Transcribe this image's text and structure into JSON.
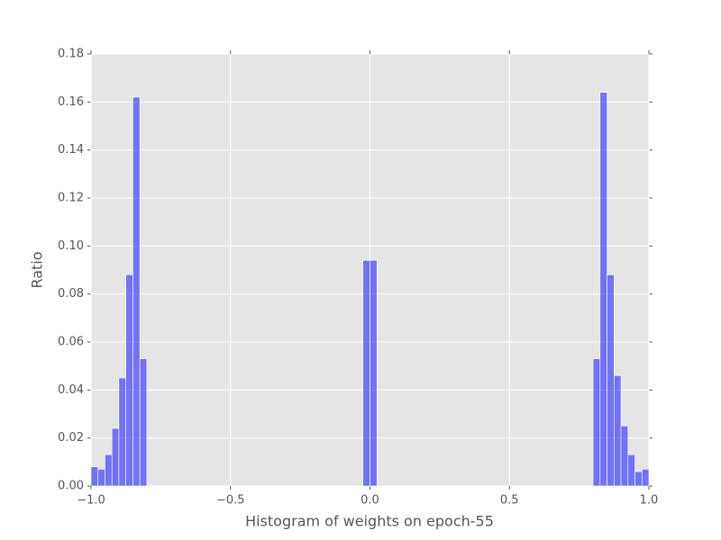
{
  "chart_data": {
    "type": "histogram",
    "xlabel": "Histogram of weights on epoch-55",
    "ylabel": "Ratio",
    "bins": [
      -1,
      -0.975,
      -0.95,
      -0.925,
      -0.9,
      -0.875,
      -0.85,
      -0.825,
      -0.8,
      -0.775,
      -0.75,
      -0.725,
      -0.7,
      -0.675,
      -0.65,
      -0.625,
      -0.6,
      -0.575,
      -0.55,
      -0.525,
      -0.5,
      -0.475,
      -0.45,
      -0.425,
      -0.4,
      -0.375,
      -0.35,
      -0.325,
      -0.3,
      -0.275,
      -0.25,
      -0.225,
      -0.2,
      -0.175,
      -0.15,
      -0.125,
      -0.1,
      -0.075,
      -0.05,
      -0.025,
      0,
      0.025,
      0.05,
      0.075,
      0.1,
      0.125,
      0.15,
      0.175,
      0.2,
      0.225,
      0.25,
      0.275,
      0.3,
      0.325,
      0.35,
      0.375,
      0.4,
      0.425,
      0.45,
      0.475,
      0.5,
      0.525,
      0.55,
      0.575,
      0.6,
      0.625,
      0.65,
      0.675,
      0.7,
      0.725,
      0.75,
      0.775,
      0.8,
      0.825,
      0.85,
      0.875,
      0.9,
      0.925,
      0.95,
      0.975,
      1
    ],
    "values": [
      0.008,
      0.007,
      0.013,
      0.024,
      0.045,
      0.088,
      0.162,
      0.053,
      0,
      0,
      0,
      0,
      0,
      0,
      0,
      0,
      0,
      0,
      0,
      0,
      0,
      0,
      0,
      0,
      0,
      0,
      0,
      0,
      0,
      0,
      0,
      0,
      0,
      0,
      0,
      0,
      0,
      0,
      0,
      0.094,
      0.094,
      0,
      0,
      0,
      0,
      0,
      0,
      0,
      0,
      0,
      0,
      0,
      0,
      0,
      0,
      0,
      0,
      0,
      0,
      0,
      0,
      0,
      0,
      0,
      0,
      0,
      0,
      0,
      0,
      0,
      0,
      0,
      0.053,
      0.164,
      0.088,
      0.046,
      0.025,
      0.013,
      0.006,
      0.007
    ],
    "color": "#0000ff",
    "xlim": [
      -1,
      1
    ],
    "xticks": [
      {
        "value": -1,
        "label": "−1.0"
      },
      {
        "value": -0.5,
        "label": "−0.5"
      },
      {
        "value": 0,
        "label": "0.0"
      },
      {
        "value": 0.5,
        "label": "0.5"
      },
      {
        "value": 1,
        "label": "1.0"
      }
    ],
    "ylim": [
      0,
      0.18
    ],
    "yticks": [
      {
        "value": 0,
        "label": "0.00"
      },
      {
        "value": 0.02,
        "label": "0.02"
      },
      {
        "value": 0.04,
        "label": "0.04"
      },
      {
        "value": 0.06,
        "label": "0.06"
      },
      {
        "value": 0.08,
        "label": "0.08"
      },
      {
        "value": 0.1,
        "label": "0.10"
      },
      {
        "value": 0.12,
        "label": "0.12"
      },
      {
        "value": 0.14,
        "label": "0.14"
      },
      {
        "value": 0.16,
        "label": "0.16"
      },
      {
        "value": 0.18,
        "label": "0.18"
      }
    ],
    "grid": true
  }
}
